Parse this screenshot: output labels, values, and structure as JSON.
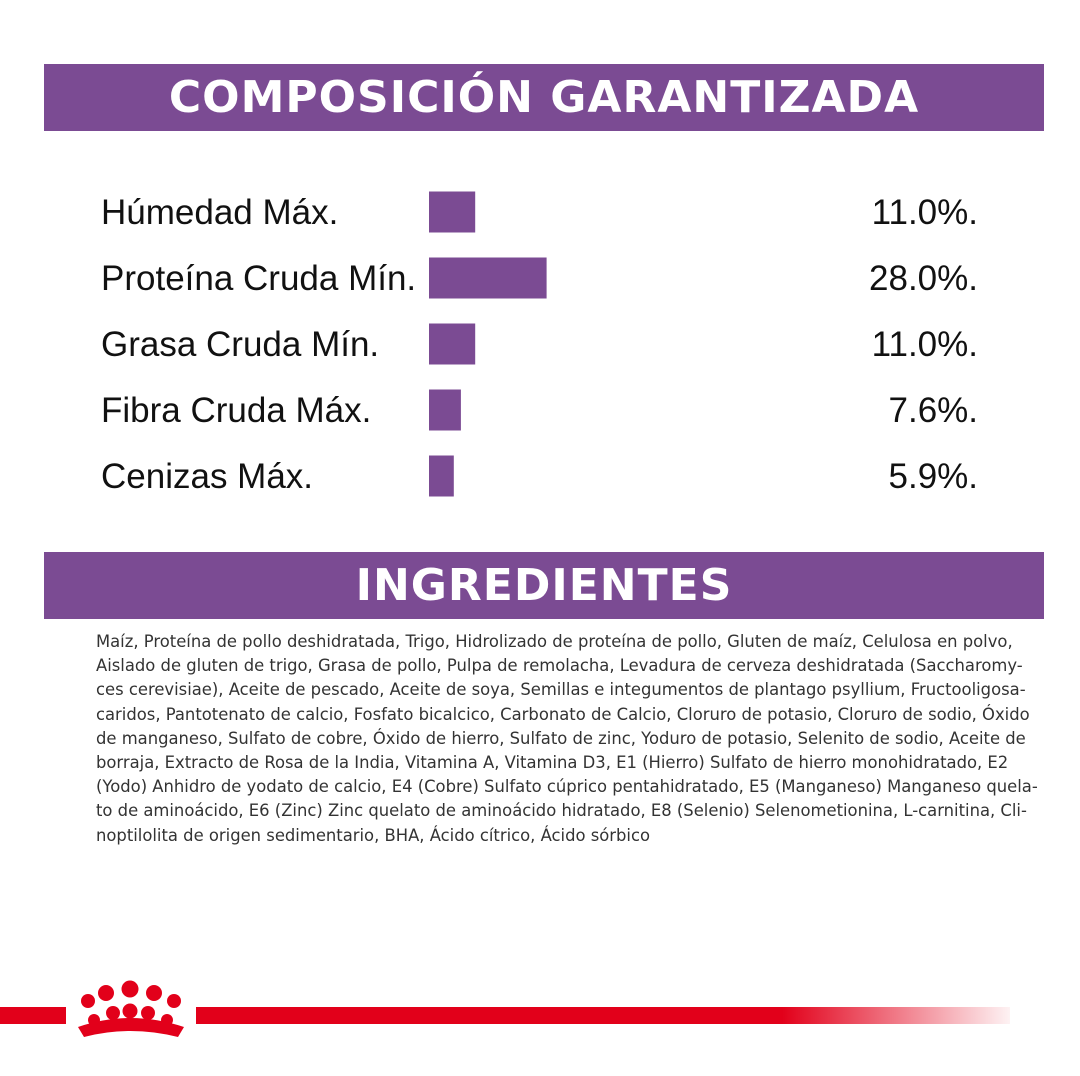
{
  "header": {
    "title": "COMPOSICIÓN GARANTIZADA"
  },
  "chart_data": {
    "type": "bar",
    "orientation": "horizontal",
    "categories": [
      "Húmedad Máx.",
      "Proteína Cruda Mín.",
      "Grasa Cruda Mín.",
      "Fibra Cruda Máx.",
      "Cenizas Máx."
    ],
    "values": [
      11.0,
      28.0,
      11.0,
      7.6,
      5.9
    ],
    "value_labels": [
      "11.0%.",
      "28.0%.",
      "11.0%.",
      "7.6%.",
      "5.9%."
    ],
    "bar_color": "#7b4b93",
    "grid": false
  },
  "ingredients": {
    "title": "INGREDIENTES",
    "lines": [
      "Maíz, Proteína de pollo deshidratada, Trigo, Hidrolizado de proteína de pollo, Gluten de maíz, Celulosa en polvo,",
      "Aislado de gluten de trigo, Grasa de pollo, Pulpa de remolacha, Levadura de cerveza deshidratada (Saccharomy-",
      "ces cerevisiae), Aceite de pescado, Aceite de soya, Semillas e integumentos de plantago psyllium, Fructooligosa-",
      "caridos, Pantotenato de calcio, Fosfato bicalcico, Carbonato de Calcio, Cloruro de potasio, Cloruro de sodio, Óxido",
      "de manganeso, Sulfato de cobre, Óxido de hierro, Sulfato de zinc, Yoduro de potasio, Selenito de sodio, Aceite de",
      "borraja, Extracto de Rosa de la India, Vitamina A, Vitamina D3, E1 (Hierro) Sulfato de hierro monohidratado, E2",
      "(Yodo) Anhidro de yodato de calcio, E4 (Cobre) Sulfato cúprico pentahidratado, E5 (Manganeso) Manganeso quela-",
      "to de aminoácido, E6 (Zinc) Zinc quelato de aminoácido hidratado, E8 (Selenio) Selenometionina, L-carnitina, Cli-",
      "noptilolita de origen sedimentario, BHA, Ácido cítrico, Ácido sórbico"
    ]
  },
  "footer": {
    "accent_color": "#e2001a",
    "logo_icon": "royal-canin-crown-icon"
  }
}
